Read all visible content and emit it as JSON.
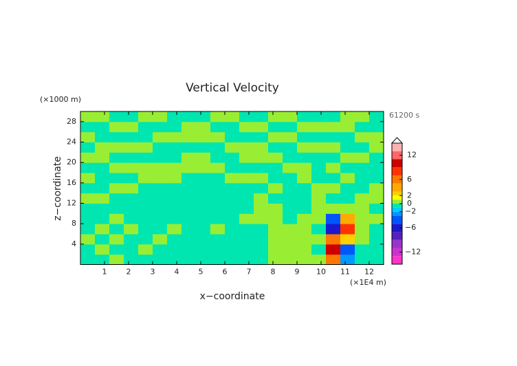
{
  "chart_data": {
    "type": "contour",
    "title": "Vertical Velocity",
    "x_label": "x−coordinate",
    "y_label": "z−coordinate",
    "x_unit": "(×1E4 m)",
    "y_unit": "(×1000 m)",
    "time_label": "61200 s",
    "xlim": [
      0,
      12.6
    ],
    "ylim": [
      0,
      30
    ],
    "xticks": [
      1,
      2,
      3,
      4,
      5,
      6,
      7,
      8,
      9,
      10,
      11,
      12
    ],
    "yticks": [
      4,
      8,
      12,
      16,
      20,
      24,
      28
    ],
    "x": [
      0.3,
      0.9,
      1.5,
      2.1,
      2.7,
      3.3,
      3.9,
      4.5,
      5.1,
      5.7,
      6.3,
      6.9,
      7.5,
      8.1,
      8.7,
      9.3,
      9.9,
      10.5,
      11.1,
      11.7,
      12.3
    ],
    "y": [
      1,
      3,
      5,
      7,
      9,
      11,
      13,
      15,
      17,
      19,
      21,
      23,
      25,
      27,
      29
    ],
    "z": [
      [
        -0.5,
        -0.5,
        0.5,
        -0.5,
        -0.5,
        -0.5,
        -0.5,
        -0.5,
        -0.5,
        -0.5,
        -0.5,
        -0.5,
        -0.5,
        0.5,
        0.5,
        0.5,
        0.5,
        6,
        -3,
        -0.5,
        -0.5
      ],
      [
        -0.5,
        0.5,
        -0.5,
        -0.5,
        0.5,
        -0.5,
        -0.5,
        -0.5,
        -0.5,
        -0.5,
        -0.5,
        -0.5,
        -0.5,
        0.5,
        0.5,
        0.5,
        -0.5,
        9,
        -4,
        -0.5,
        -0.5
      ],
      [
        0.5,
        -0.5,
        0.5,
        -0.5,
        -0.5,
        0.5,
        -0.5,
        -0.5,
        -0.5,
        -0.5,
        -0.5,
        -0.5,
        -0.5,
        0.5,
        0.5,
        0.5,
        0.5,
        5,
        2,
        0.5,
        -0.5
      ],
      [
        -0.5,
        0.5,
        -0.5,
        0.5,
        -0.5,
        -0.5,
        0.5,
        -0.5,
        -0.5,
        0.5,
        -0.5,
        -0.5,
        -0.5,
        0.5,
        0.5,
        0.5,
        -0.5,
        -6,
        8,
        0.5,
        -0.5
      ],
      [
        -0.5,
        -0.5,
        0.5,
        -0.5,
        -0.5,
        -0.5,
        -0.5,
        -0.5,
        -0.5,
        -0.5,
        -0.5,
        0.5,
        0.5,
        0.5,
        -0.5,
        0.5,
        0.5,
        -5,
        3,
        0.5,
        0.5
      ],
      [
        -0.5,
        -0.5,
        -0.5,
        -0.5,
        -0.5,
        -0.5,
        -0.5,
        -0.5,
        -0.5,
        -0.5,
        -0.5,
        -0.5,
        0.5,
        0.5,
        -0.5,
        -0.5,
        0.5,
        0.5,
        0.5,
        0.5,
        -0.5
      ],
      [
        0.5,
        0.5,
        -0.5,
        -0.5,
        -0.5,
        -0.5,
        -0.5,
        -0.5,
        -0.5,
        -0.5,
        -0.5,
        -0.5,
        0.5,
        -0.5,
        -0.5,
        -0.5,
        0.5,
        -0.5,
        -0.5,
        0.5,
        0.5
      ],
      [
        -0.5,
        -0.5,
        0.5,
        0.5,
        -0.5,
        -0.5,
        -0.5,
        -0.5,
        -0.5,
        -0.5,
        -0.5,
        -0.5,
        -0.5,
        0.5,
        -0.5,
        -0.5,
        0.5,
        0.5,
        -0.5,
        -0.5,
        0.5
      ],
      [
        0.5,
        -0.5,
        -0.5,
        -0.5,
        0.5,
        0.5,
        0.5,
        -0.5,
        -0.5,
        -0.5,
        0.5,
        0.5,
        0.5,
        -0.5,
        -0.5,
        0.5,
        -0.5,
        -0.5,
        0.5,
        -0.5,
        -0.5
      ],
      [
        -0.5,
        -0.5,
        0.5,
        0.5,
        0.5,
        0.5,
        0.5,
        0.5,
        0.5,
        0.5,
        -0.5,
        -0.5,
        -0.5,
        -0.5,
        0.5,
        0.5,
        -0.5,
        0.5,
        -0.5,
        -0.5,
        -0.5
      ],
      [
        0.5,
        0.5,
        -0.5,
        -0.5,
        -0.5,
        -0.5,
        -0.5,
        0.5,
        0.5,
        -0.5,
        -0.5,
        0.5,
        0.5,
        0.5,
        -0.5,
        -0.5,
        -0.5,
        -0.5,
        0.5,
        0.5,
        -0.5
      ],
      [
        -0.5,
        0.5,
        0.5,
        0.5,
        0.5,
        -0.5,
        -0.5,
        -0.5,
        -0.5,
        -0.5,
        0.5,
        0.5,
        0.5,
        -0.5,
        -0.5,
        0.5,
        0.5,
        0.5,
        -0.5,
        -0.5,
        0.5
      ],
      [
        0.5,
        -0.5,
        -0.5,
        -0.5,
        -0.5,
        0.5,
        0.5,
        0.5,
        0.5,
        0.5,
        -0.5,
        -0.5,
        -0.5,
        0.5,
        0.5,
        -0.5,
        -0.5,
        -0.5,
        -0.5,
        0.5,
        0.5
      ],
      [
        -0.5,
        -0.5,
        0.5,
        0.5,
        -0.5,
        -0.5,
        -0.5,
        0.5,
        0.5,
        -0.5,
        -0.5,
        0.5,
        0.5,
        -0.5,
        -0.5,
        0.5,
        0.5,
        0.5,
        0.5,
        -0.5,
        -0.5
      ],
      [
        0.5,
        0.5,
        -0.5,
        -0.5,
        0.5,
        0.5,
        -0.5,
        -0.5,
        -0.5,
        0.5,
        0.5,
        -0.5,
        -0.5,
        0.5,
        0.5,
        -0.5,
        -0.5,
        -0.5,
        0.5,
        0.5,
        -0.5
      ]
    ],
    "colorbar": {
      "lim": [
        -15,
        15
      ],
      "bounds": [
        -15,
        -13,
        -11,
        -9,
        -7,
        -5,
        -3,
        -2,
        -1,
        0,
        1,
        2,
        3,
        5,
        7,
        9,
        11,
        13,
        15
      ],
      "colors": [
        "#ff33cc",
        "#cc33cc",
        "#9933cc",
        "#5522bb",
        "#1a1acc",
        "#0055ff",
        "#0099ff",
        "#00ccff",
        "#00e6b0",
        "#99ee33",
        "#ffff00",
        "#ffd000",
        "#ffaa00",
        "#ff7700",
        "#ff3300",
        "#cc0000",
        "#ff6666",
        "#ffb0b0"
      ],
      "ticks": [
        12,
        6,
        2,
        0,
        {
          "value": -2,
          "label": "−2"
        },
        {
          "value": -6,
          "label": "−6"
        },
        {
          "value": -12,
          "label": "−12"
        }
      ]
    }
  }
}
